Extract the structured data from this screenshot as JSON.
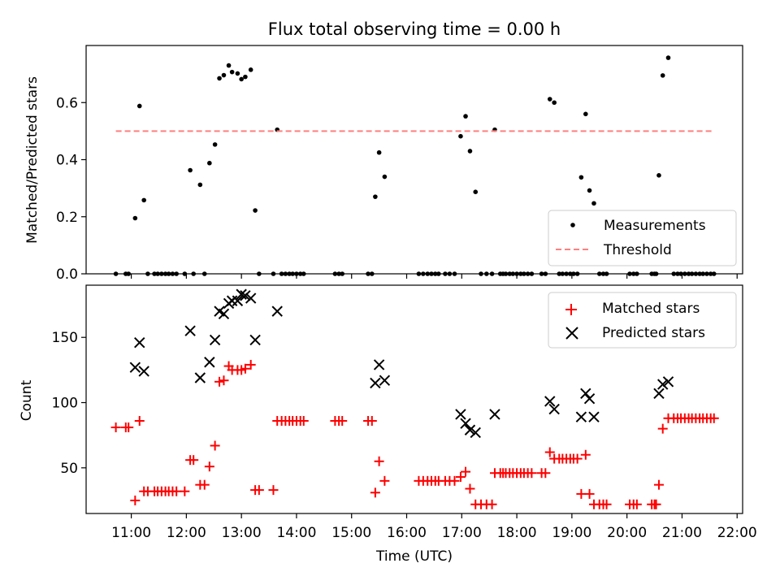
{
  "chart_data": [
    {
      "type": "scatter",
      "title": "Flux total observing time = 0.00 h",
      "xlabel": "",
      "ylabel": "Matched/Predicted stars",
      "xlim": [
        10.18,
        22.1
      ],
      "ylim": [
        0,
        0.8
      ],
      "yticks": [
        0.0,
        0.2,
        0.4,
        0.6
      ],
      "ytick_labels": [
        "0.0",
        "0.2",
        "0.4",
        "0.6"
      ],
      "grid": false,
      "legend_position": "lower-right",
      "series": [
        {
          "name": "Measurements",
          "marker": "dot",
          "color": "#000000",
          "points": [
            [
              10.72,
              0
            ],
            [
              10.9,
              0
            ],
            [
              10.95,
              0
            ],
            [
              11.07,
              0.195
            ],
            [
              11.15,
              0.588
            ],
            [
              11.23,
              0.258
            ],
            [
              11.3,
              0
            ],
            [
              11.42,
              0
            ],
            [
              11.48,
              0
            ],
            [
              11.55,
              0
            ],
            [
              11.62,
              0
            ],
            [
              11.68,
              0
            ],
            [
              11.75,
              0
            ],
            [
              11.82,
              0
            ],
            [
              11.97,
              0
            ],
            [
              12.07,
              0.363
            ],
            [
              12.13,
              0
            ],
            [
              12.25,
              0.312
            ],
            [
              12.33,
              0
            ],
            [
              12.42,
              0.388
            ],
            [
              12.52,
              0.453
            ],
            [
              12.6,
              0.685
            ],
            [
              12.68,
              0.696
            ],
            [
              12.77,
              0.73
            ],
            [
              12.83,
              0.707
            ],
            [
              12.93,
              0.702
            ],
            [
              13.0,
              0.682
            ],
            [
              13.07,
              0.69
            ],
            [
              13.17,
              0.715
            ],
            [
              13.25,
              0.222
            ],
            [
              13.32,
              0
            ],
            [
              13.58,
              0
            ],
            [
              13.65,
              0.505
            ],
            [
              13.73,
              0
            ],
            [
              13.8,
              0
            ],
            [
              13.87,
              0
            ],
            [
              13.93,
              0
            ],
            [
              14.0,
              0
            ],
            [
              14.07,
              0
            ],
            [
              14.13,
              0
            ],
            [
              14.7,
              0
            ],
            [
              14.77,
              0
            ],
            [
              14.83,
              0
            ],
            [
              15.3,
              0
            ],
            [
              15.37,
              0
            ],
            [
              15.43,
              0.27
            ],
            [
              15.5,
              0.425
            ],
            [
              15.6,
              0.34
            ],
            [
              16.22,
              0
            ],
            [
              16.3,
              0
            ],
            [
              16.38,
              0
            ],
            [
              16.45,
              0
            ],
            [
              16.52,
              0
            ],
            [
              16.58,
              0
            ],
            [
              16.7,
              0
            ],
            [
              16.78,
              0
            ],
            [
              16.87,
              0
            ],
            [
              16.98,
              0.482
            ],
            [
              17.07,
              0.552
            ],
            [
              17.15,
              0.43
            ],
            [
              17.25,
              0.287
            ],
            [
              17.35,
              0
            ],
            [
              17.45,
              0
            ],
            [
              17.55,
              0
            ],
            [
              17.6,
              0.505
            ],
            [
              17.7,
              0
            ],
            [
              17.75,
              0
            ],
            [
              17.8,
              0
            ],
            [
              17.87,
              0
            ],
            [
              17.93,
              0
            ],
            [
              18.0,
              0
            ],
            [
              18.07,
              0
            ],
            [
              18.13,
              0
            ],
            [
              18.2,
              0
            ],
            [
              18.27,
              0
            ],
            [
              18.45,
              0
            ],
            [
              18.52,
              0
            ],
            [
              18.6,
              0.612
            ],
            [
              18.68,
              0.6
            ],
            [
              18.77,
              0
            ],
            [
              18.83,
              0
            ],
            [
              18.9,
              0
            ],
            [
              18.97,
              0
            ],
            [
              19.03,
              0
            ],
            [
              19.1,
              0
            ],
            [
              19.17,
              0.338
            ],
            [
              19.25,
              0.56
            ],
            [
              19.32,
              0.292
            ],
            [
              19.4,
              0.247
            ],
            [
              19.5,
              0
            ],
            [
              19.57,
              0
            ],
            [
              19.63,
              0
            ],
            [
              20.05,
              0
            ],
            [
              20.12,
              0
            ],
            [
              20.18,
              0
            ],
            [
              20.45,
              0
            ],
            [
              20.5,
              0
            ],
            [
              20.53,
              0
            ],
            [
              20.58,
              0.345
            ],
            [
              20.65,
              0.695
            ],
            [
              20.75,
              0.757
            ],
            [
              20.85,
              0
            ],
            [
              20.92,
              0
            ],
            [
              20.98,
              0
            ],
            [
              21.05,
              0
            ],
            [
              21.12,
              0
            ],
            [
              21.18,
              0
            ],
            [
              21.25,
              0
            ],
            [
              21.32,
              0
            ],
            [
              21.38,
              0
            ],
            [
              21.45,
              0
            ],
            [
              21.52,
              0
            ],
            [
              21.58,
              0
            ]
          ]
        },
        {
          "name": "Threshold",
          "style": "dashed",
          "color": "#ff7f7f",
          "points": [
            [
              10.72,
              0.5
            ],
            [
              21.58,
              0.5
            ]
          ]
        }
      ]
    },
    {
      "type": "scatter",
      "title": "",
      "xlabel": "Time (UTC)",
      "ylabel": "Count",
      "xlim": [
        10.18,
        22.1
      ],
      "ylim": [
        15,
        190
      ],
      "yticks": [
        50,
        100,
        150
      ],
      "ytick_labels": [
        "50",
        "100",
        "150"
      ],
      "xticks": [
        11,
        12,
        13,
        14,
        15,
        16,
        17,
        18,
        19,
        20,
        21,
        22
      ],
      "xtick_labels": [
        "11:00",
        "12:00",
        "13:00",
        "14:00",
        "15:00",
        "16:00",
        "17:00",
        "18:00",
        "19:00",
        "20:00",
        "21:00",
        "22:00"
      ],
      "grid": false,
      "legend_position": "top-right",
      "series": [
        {
          "name": "Matched stars",
          "marker": "plus",
          "color": "#ff0000",
          "points": [
            [
              10.72,
              81
            ],
            [
              10.9,
              81
            ],
            [
              10.95,
              81
            ],
            [
              11.07,
              25
            ],
            [
              11.15,
              86
            ],
            [
              11.23,
              32
            ],
            [
              11.3,
              32
            ],
            [
              11.42,
              32
            ],
            [
              11.48,
              32
            ],
            [
              11.55,
              32
            ],
            [
              11.62,
              32
            ],
            [
              11.68,
              32
            ],
            [
              11.75,
              32
            ],
            [
              11.82,
              32
            ],
            [
              11.97,
              32
            ],
            [
              12.07,
              56
            ],
            [
              12.13,
              56
            ],
            [
              12.25,
              37
            ],
            [
              12.33,
              37
            ],
            [
              12.42,
              51
            ],
            [
              12.52,
              67
            ],
            [
              12.6,
              116
            ],
            [
              12.68,
              117
            ],
            [
              12.77,
              128
            ],
            [
              12.83,
              125
            ],
            [
              12.93,
              125
            ],
            [
              13.0,
              125
            ],
            [
              13.07,
              126
            ],
            [
              13.17,
              129
            ],
            [
              13.25,
              33
            ],
            [
              13.32,
              33
            ],
            [
              13.58,
              33
            ],
            [
              13.65,
              86
            ],
            [
              13.73,
              86
            ],
            [
              13.8,
              86
            ],
            [
              13.87,
              86
            ],
            [
              13.93,
              86
            ],
            [
              14.0,
              86
            ],
            [
              14.07,
              86
            ],
            [
              14.13,
              86
            ],
            [
              14.7,
              86
            ],
            [
              14.77,
              86
            ],
            [
              14.83,
              86
            ],
            [
              15.3,
              86
            ],
            [
              15.37,
              86
            ],
            [
              15.43,
              31
            ],
            [
              15.5,
              55
            ],
            [
              15.6,
              40
            ],
            [
              16.22,
              40
            ],
            [
              16.3,
              40
            ],
            [
              16.38,
              40
            ],
            [
              16.45,
              40
            ],
            [
              16.52,
              40
            ],
            [
              16.58,
              40
            ],
            [
              16.7,
              40
            ],
            [
              16.78,
              40
            ],
            [
              16.87,
              40
            ],
            [
              16.98,
              43
            ],
            [
              17.07,
              47
            ],
            [
              17.15,
              34
            ],
            [
              17.25,
              22
            ],
            [
              17.35,
              22
            ],
            [
              17.45,
              22
            ],
            [
              17.55,
              22
            ],
            [
              17.6,
              46
            ],
            [
              17.7,
              46
            ],
            [
              17.75,
              46
            ],
            [
              17.8,
              46
            ],
            [
              17.87,
              46
            ],
            [
              17.93,
              46
            ],
            [
              18.0,
              46
            ],
            [
              18.07,
              46
            ],
            [
              18.13,
              46
            ],
            [
              18.2,
              46
            ],
            [
              18.27,
              46
            ],
            [
              18.45,
              46
            ],
            [
              18.52,
              46
            ],
            [
              18.6,
              62
            ],
            [
              18.68,
              57
            ],
            [
              18.77,
              57
            ],
            [
              18.83,
              57
            ],
            [
              18.9,
              57
            ],
            [
              18.97,
              57
            ],
            [
              19.03,
              57
            ],
            [
              19.1,
              57
            ],
            [
              19.17,
              30
            ],
            [
              19.25,
              60
            ],
            [
              19.32,
              30
            ],
            [
              19.4,
              22
            ],
            [
              19.5,
              22
            ],
            [
              19.57,
              22
            ],
            [
              19.63,
              22
            ],
            [
              20.05,
              22
            ],
            [
              20.12,
              22
            ],
            [
              20.18,
              22
            ],
            [
              20.45,
              22
            ],
            [
              20.5,
              22
            ],
            [
              20.53,
              22
            ],
            [
              20.58,
              37
            ],
            [
              20.65,
              80
            ],
            [
              20.75,
              88
            ],
            [
              20.85,
              88
            ],
            [
              20.92,
              88
            ],
            [
              20.98,
              88
            ],
            [
              21.05,
              88
            ],
            [
              21.12,
              88
            ],
            [
              21.18,
              88
            ],
            [
              21.25,
              88
            ],
            [
              21.32,
              88
            ],
            [
              21.38,
              88
            ],
            [
              21.45,
              88
            ],
            [
              21.52,
              88
            ],
            [
              21.58,
              88
            ]
          ]
        },
        {
          "name": "Predicted stars",
          "marker": "x",
          "color": "#000000",
          "points": [
            [
              11.07,
              127
            ],
            [
              11.15,
              146
            ],
            [
              11.23,
              124
            ],
            [
              12.07,
              155
            ],
            [
              12.25,
              119
            ],
            [
              12.42,
              131
            ],
            [
              12.52,
              148
            ],
            [
              12.6,
              170
            ],
            [
              12.68,
              168
            ],
            [
              12.77,
              176
            ],
            [
              12.83,
              178
            ],
            [
              12.93,
              178
            ],
            [
              13.0,
              183
            ],
            [
              13.07,
              182
            ],
            [
              13.17,
              180
            ],
            [
              13.25,
              148
            ],
            [
              13.65,
              170
            ],
            [
              15.43,
              115
            ],
            [
              15.5,
              129
            ],
            [
              15.6,
              117
            ],
            [
              16.98,
              91
            ],
            [
              17.07,
              84
            ],
            [
              17.15,
              79
            ],
            [
              17.25,
              77
            ],
            [
              17.6,
              91
            ],
            [
              18.6,
              101
            ],
            [
              18.68,
              95
            ],
            [
              19.17,
              89
            ],
            [
              19.25,
              107
            ],
            [
              19.32,
              103
            ],
            [
              19.4,
              89
            ],
            [
              20.58,
              107
            ],
            [
              20.65,
              114
            ],
            [
              20.75,
              116
            ]
          ]
        }
      ]
    }
  ]
}
